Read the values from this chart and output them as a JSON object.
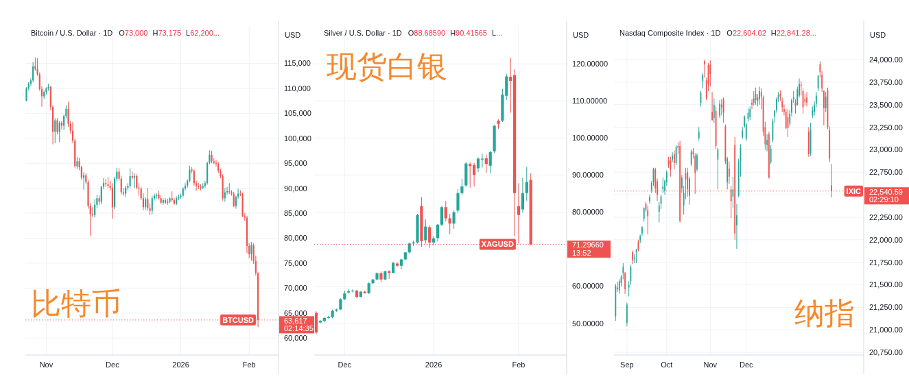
{
  "chart_data": [
    {
      "type": "candlestick",
      "title": "比特币",
      "subtitle": "Bitcoin / U.S. Dollar · 1D",
      "ylabel": "USD",
      "annotations": [
        "O73,000",
        "H73,175",
        "L62,200...",
        "02:14:35"
      ],
      "categories": [
        null,
        null,
        null,
        null,
        null,
        null,
        null,
        null,
        null,
        "Nov",
        null,
        null,
        null,
        null,
        null,
        null,
        null,
        null,
        null,
        null,
        null,
        null,
        null,
        null,
        null,
        null,
        null,
        null,
        null,
        null,
        null,
        null,
        null,
        null,
        null,
        null,
        null,
        null,
        null,
        "Dec",
        null,
        null,
        null,
        null,
        null,
        null,
        null,
        null,
        null,
        null,
        null,
        null,
        null,
        null,
        null,
        null,
        null,
        null,
        null,
        null,
        null,
        null,
        null,
        null,
        null,
        null,
        null,
        null,
        null,
        null,
        "2026",
        null,
        null,
        null,
        null,
        null,
        null,
        null,
        null,
        null,
        null,
        null,
        null,
        null,
        null,
        null,
        null,
        null,
        null,
        null,
        null,
        null,
        null,
        null,
        null,
        null,
        null,
        null,
        null,
        null,
        null,
        "Feb",
        null,
        null,
        null,
        null
      ],
      "ohlc": [
        [
          107500,
          110200,
          107400,
          110000
        ],
        [
          110000,
          111200,
          109600,
          110900
        ],
        [
          110900,
          112000,
          110500,
          111600
        ],
        [
          111600,
          115300,
          111200,
          114400
        ],
        [
          114400,
          116200,
          113500,
          113900
        ],
        [
          113900,
          116000,
          112500,
          112800
        ],
        [
          112800,
          113200,
          109500,
          109800
        ],
        [
          109800,
          110400,
          106300,
          108400
        ],
        [
          108400,
          109600,
          107900,
          109300
        ],
        [
          109300,
          110200,
          108800,
          110000
        ],
        [
          110000,
          110900,
          109500,
          110300
        ],
        [
          110300,
          110500,
          105600,
          106300
        ],
        [
          106300,
          106600,
          98800,
          101300
        ],
        [
          101300,
          104000,
          99000,
          103600
        ],
        [
          103600,
          104000,
          100800,
          101300
        ],
        [
          101300,
          103500,
          99200,
          103100
        ],
        [
          103100,
          103500,
          101800,
          102500
        ],
        [
          102500,
          104800,
          101600,
          104500
        ],
        [
          104500,
          106600,
          104000,
          105900
        ],
        [
          105900,
          107300,
          102300,
          102900
        ],
        [
          102900,
          103400,
          100900,
          101500
        ],
        [
          101500,
          103300,
          99000,
          99500
        ],
        [
          99500,
          99900,
          94100,
          94400
        ],
        [
          94400,
          96300,
          93900,
          95400
        ],
        [
          95400,
          96100,
          93600,
          94200
        ],
        [
          94200,
          94500,
          91700,
          92100
        ],
        [
          92100,
          93200,
          89700,
          92600
        ],
        [
          92600,
          93000,
          90800,
          91200
        ],
        [
          91200,
          91600,
          85900,
          86400
        ],
        [
          86400,
          87000,
          80500,
          84800
        ],
        [
          84800,
          86200,
          84200,
          84600
        ],
        [
          84600,
          87800,
          84100,
          86700
        ],
        [
          86700,
          88700,
          86000,
          88000
        ],
        [
          88000,
          88500,
          86700,
          87300
        ],
        [
          87300,
          90500,
          86800,
          90300
        ],
        [
          90300,
          92000,
          89800,
          91000
        ],
        [
          91000,
          91800,
          90300,
          90800
        ],
        [
          90800,
          92200,
          90000,
          90500
        ],
        [
          90500,
          91500,
          89500,
          90100
        ],
        [
          90100,
          91000,
          83900,
          86200
        ],
        [
          86200,
          92300,
          85800,
          91900
        ],
        [
          91900,
          94100,
          91400,
          93300
        ],
        [
          93300,
          94000,
          91500,
          91900
        ],
        [
          91900,
          92500,
          88700,
          89200
        ],
        [
          89200,
          90000,
          88500,
          88900
        ],
        [
          88900,
          90500,
          88300,
          90100
        ],
        [
          90100,
          91000,
          89600,
          90500
        ],
        [
          90500,
          94000,
          90000,
          92400
        ],
        [
          92400,
          93300,
          91700,
          92100
        ],
        [
          92100,
          93000,
          90000,
          92400
        ],
        [
          92400,
          92800,
          89800,
          90100
        ],
        [
          90100,
          91000,
          88500,
          89900
        ],
        [
          89900,
          90300,
          87600,
          88000
        ],
        [
          88000,
          89000,
          85600,
          86200
        ],
        [
          86200,
          88200,
          85700,
          87800
        ],
        [
          87800,
          90000,
          85500,
          86000
        ],
        [
          86000,
          87000,
          84600,
          85500
        ],
        [
          85500,
          88500,
          84800,
          88000
        ],
        [
          88000,
          88900,
          87500,
          88500
        ],
        [
          88500,
          89000,
          87900,
          88700
        ],
        [
          88700,
          89500,
          87700,
          88000
        ],
        [
          88000,
          88600,
          86900,
          87100
        ],
        [
          87100,
          88000,
          86700,
          87600
        ],
        [
          87600,
          88000,
          86800,
          87100
        ],
        [
          87100,
          87900,
          86700,
          87300
        ],
        [
          87300,
          88200,
          87000,
          88000
        ],
        [
          88000,
          89400,
          87200,
          87600
        ],
        [
          87600,
          88000,
          86700,
          86900
        ],
        [
          86900,
          88400,
          86600,
          88000
        ],
        [
          88000,
          88700,
          87600,
          88300
        ],
        [
          88300,
          88900,
          87900,
          88500
        ],
        [
          88500,
          90200,
          88200,
          89900
        ],
        [
          89900,
          91000,
          89500,
          90500
        ],
        [
          90500,
          91800,
          90100,
          91500
        ],
        [
          91500,
          94500,
          91200,
          93700
        ],
        [
          93700,
          94200,
          93000,
          93500
        ],
        [
          93500,
          93800,
          90500,
          91000
        ],
        [
          91000,
          91500,
          89500,
          90500
        ],
        [
          90500,
          91000,
          89800,
          90300
        ],
        [
          90300,
          90800,
          89600,
          90100
        ],
        [
          90100,
          91000,
          89800,
          90500
        ],
        [
          90500,
          91500,
          90000,
          91000
        ],
        [
          91000,
          95300,
          90700,
          95100
        ],
        [
          95100,
          97600,
          94800,
          96700
        ],
        [
          96700,
          97500,
          95000,
          95400
        ],
        [
          95400,
          96000,
          94800,
          95100
        ],
        [
          95100,
          95600,
          94300,
          94900
        ],
        [
          94900,
          95300,
          93000,
          93500
        ],
        [
          93500,
          93900,
          92000,
          92400
        ],
        [
          92400,
          92800,
          87500,
          88000
        ],
        [
          88000,
          90000,
          87300,
          89200
        ],
        [
          89200,
          90300,
          88700,
          89400
        ],
        [
          89400,
          91000,
          88800,
          89200
        ],
        [
          89200,
          89600,
          88500,
          88900
        ],
        [
          88900,
          89300,
          86200,
          86400
        ],
        [
          86400,
          88500,
          85900,
          88300
        ],
        [
          88300,
          89900,
          87800,
          88900
        ],
        [
          88900,
          89600,
          88400,
          88800
        ],
        [
          88800,
          89100,
          84200,
          84400
        ],
        [
          84400,
          85000,
          83500,
          84100
        ],
        [
          84100,
          84500,
          77000,
          78400
        ],
        [
          78400,
          79000,
          76000,
          76800
        ],
        [
          76800,
          79200,
          75500,
          78600
        ],
        [
          78600,
          79000,
          74800,
          75400
        ],
        [
          75400,
          76500,
          72500,
          73000
        ],
        [
          73000,
          73175,
          62200,
          63617
        ]
      ],
      "colors": [
        "#26a69a",
        "#26a69a",
        "#26a69a",
        "#26a69a",
        "#ef5350",
        "#ef5350",
        "#ef5350",
        "#ef5350",
        "#26a69a",
        "#26a69a",
        "#26a69a",
        "#ef5350",
        "#ef5350",
        "#26a69a",
        "#ef5350",
        "#26a69a",
        "#ef5350",
        "#26a69a",
        "#26a69a",
        "#ef5350",
        "#ef5350",
        "#ef5350",
        "#ef5350",
        "#26a69a",
        "#ef5350",
        "#ef5350",
        "#26a69a",
        "#ef5350",
        "#ef5350",
        "#ef5350",
        "#ef5350",
        "#26a69a",
        "#26a69a",
        "#ef5350",
        "#26a69a",
        "#26a69a",
        "#ef5350",
        "#ef5350",
        "#ef5350",
        "#ef5350",
        "#26a69a",
        "#26a69a",
        "#ef5350",
        "#ef5350",
        "#ef5350",
        "#26a69a",
        "#26a69a",
        "#26a69a",
        "#ef5350",
        "#26a69a",
        "#ef5350",
        "#ef5350",
        "#ef5350",
        "#ef5350",
        "#26a69a",
        "#ef5350",
        "#ef5350",
        "#26a69a",
        "#26a69a",
        "#26a69a",
        "#ef5350",
        "#ef5350",
        "#26a69a",
        "#ef5350",
        "#26a69a",
        "#26a69a",
        "#ef5350",
        "#ef5350",
        "#26a69a",
        "#26a69a",
        "#26a69a",
        "#26a69a",
        "#26a69a",
        "#26a69a",
        "#26a69a",
        "#ef5350",
        "#ef5350",
        "#ef5350",
        "#ef5350",
        "#ef5350",
        "#26a69a",
        "#26a69a",
        "#26a69a",
        "#26a69a",
        "#ef5350",
        "#ef5350",
        "#ef5350",
        "#ef5350",
        "#ef5350",
        "#ef5350",
        "#26a69a",
        "#26a69a",
        "#ef5350",
        "#ef5350",
        "#ef5350",
        "#26a69a",
        "#26a69a",
        "#ef5350",
        "#ef5350",
        "#ef5350",
        "#ef5350",
        "#ef5350",
        "#26a69a",
        "#ef5350",
        "#ef5350",
        "#ef5350"
      ],
      "ylim": [
        56600,
        122600
      ],
      "yticks": [
        {
          "value": 60000,
          "label": "60,000"
        },
        {
          "value": 63617,
          "label": "63,617"
        },
        {
          "value": 65000,
          "label": "65,000"
        },
        {
          "value": 70000,
          "label": "70,000"
        },
        {
          "value": 75000,
          "label": "75,000"
        },
        {
          "value": 80000,
          "label": "80,000"
        },
        {
          "value": 85000,
          "label": "85,000"
        },
        {
          "value": 90000,
          "label": "90,000"
        },
        {
          "value": 95000,
          "label": "95,000"
        },
        {
          "value": 100000,
          "label": "100,000"
        },
        {
          "value": 105000,
          "label": "105,000"
        },
        {
          "value": 110000,
          "label": "110,000"
        },
        {
          "value": 115000,
          "label": "115,000"
        }
      ],
      "grid": true,
      "ref_lines": [
        {
          "axis": "y",
          "value": 63617,
          "label": "BTCUSD",
          "color": "#ef5350",
          "line_style": "dotted"
        }
      ]
    },
    {
      "type": "candlestick",
      "title": "现货白银",
      "subtitle": "Silver / U.S. Dollar · 1D",
      "ylabel": "USD",
      "annotations": [
        "O88.68590",
        "H90.41565",
        "L...",
        "13:52"
      ],
      "categories": [
        null,
        null,
        null,
        null,
        null,
        null,
        null,
        "Dec",
        null,
        null,
        null,
        null,
        null,
        null,
        null,
        null,
        null,
        null,
        null,
        null,
        null,
        null,
        null,
        null,
        null,
        null,
        null,
        null,
        null,
        "2026",
        null,
        null,
        null,
        null,
        null,
        null,
        null,
        null,
        null,
        null,
        null,
        null,
        null,
        null,
        null,
        null,
        null,
        null,
        null,
        null,
        "Feb",
        null,
        null,
        null
      ],
      "ohlc": [
        [
          52.8,
          53.2,
          47.0,
          47.5
        ],
        [
          50.2,
          50.9,
          50.0,
          50.6
        ],
        [
          50.6,
          51.6,
          50.3,
          51.4
        ],
        [
          51.4,
          52.0,
          51.2,
          51.6
        ],
        [
          51.6,
          53.6,
          51.3,
          53.4
        ],
        [
          53.4,
          53.9,
          53.1,
          53.7
        ],
        [
          53.7,
          56.7,
          53.5,
          56.5
        ],
        [
          56.5,
          58.8,
          56.2,
          58.0
        ],
        [
          58.3,
          59.1,
          58.0,
          58.6
        ],
        [
          58.6,
          59.1,
          58.3,
          58.8
        ],
        [
          58.8,
          59.0,
          56.8,
          57.1
        ],
        [
          57.1,
          58.7,
          57.0,
          58.5
        ],
        [
          58.5,
          58.8,
          58.0,
          58.1
        ],
        [
          58.1,
          61.0,
          57.9,
          60.8
        ],
        [
          60.8,
          62.0,
          60.6,
          61.8
        ],
        [
          61.8,
          63.7,
          61.5,
          63.5
        ],
        [
          63.5,
          64.0,
          61.0,
          61.8
        ],
        [
          61.8,
          64.2,
          61.6,
          64.0
        ],
        [
          64.0,
          64.3,
          62.0,
          63.6
        ],
        [
          63.6,
          66.6,
          63.4,
          66.3
        ],
        [
          66.1,
          66.5,
          65.2,
          65.5
        ],
        [
          65.5,
          67.4,
          64.5,
          67.2
        ],
        [
          67.2,
          69.2,
          67.0,
          69.1
        ],
        [
          69.1,
          71.8,
          68.9,
          71.5
        ],
        [
          71.5,
          72.3,
          70.8,
          71.8
        ],
        [
          71.8,
          79.5,
          71.5,
          79.2
        ],
        [
          81.6,
          84.1,
          70.6,
          72.1
        ],
        [
          72.4,
          78.0,
          71.5,
          76.1
        ],
        [
          75.9,
          76.5,
          70.3,
          71.8
        ],
        [
          71.8,
          73.5,
          71.0,
          72.9
        ],
        [
          73.0,
          76.8,
          72.0,
          76.6
        ],
        [
          76.6,
          81.6,
          76.2,
          81.3
        ],
        [
          81.3,
          83.0,
          77.5,
          78.3
        ],
        [
          78.3,
          79.5,
          74.0,
          76.9
        ],
        [
          76.9,
          80.5,
          75.5,
          80.0
        ],
        [
          80.4,
          86.2,
          79.7,
          85.1
        ],
        [
          85.1,
          89.0,
          84.5,
          86.9
        ],
        [
          87.2,
          93.5,
          86.8,
          93.1
        ],
        [
          93.0,
          93.5,
          86.6,
          92.4
        ],
        [
          92.7,
          93.3,
          86.9,
          90.0
        ],
        [
          91.8,
          94.8,
          90.8,
          94.4
        ],
        [
          94.2,
          95.8,
          92.0,
          94.4
        ],
        [
          94.5,
          95.5,
          90.6,
          93.0
        ],
        [
          92.5,
          96.5,
          90.5,
          96.2
        ],
        [
          96.4,
          103.5,
          96.0,
          103.3
        ],
        [
          104.7,
          105.0,
          102.5,
          103.8
        ],
        [
          104.7,
          113.3,
          104.3,
          111.7
        ],
        [
          111.4,
          117.3,
          110.3,
          116.6
        ],
        [
          116.5,
          121.6,
          106.8,
          115.4
        ],
        [
          117.0,
          118.5,
          73.5,
          85.1
        ],
        [
          81.6,
          87.8,
          71.5,
          79.2
        ],
        [
          80.7,
          89.2,
          79.8,
          85.1
        ],
        [
          85.1,
          92.1,
          83.1,
          88.1
        ],
        [
          88.6859,
          90.41565,
          71.1,
          71.2966
        ]
      ],
      "colors": [
        "#ef5350",
        "#26a69a",
        "#26a69a",
        "#26a69a",
        "#26a69a",
        "#26a69a",
        "#26a69a",
        "#26a69a",
        "#26a69a",
        "#26a69a",
        "#ef5350",
        "#26a69a",
        "#ef5350",
        "#26a69a",
        "#26a69a",
        "#26a69a",
        "#ef5350",
        "#26a69a",
        "#ef5350",
        "#26a69a",
        "#ef5350",
        "#26a69a",
        "#26a69a",
        "#26a69a",
        "#26a69a",
        "#26a69a",
        "#ef5350",
        "#26a69a",
        "#ef5350",
        "#26a69a",
        "#26a69a",
        "#26a69a",
        "#ef5350",
        "#ef5350",
        "#26a69a",
        "#26a69a",
        "#26a69a",
        "#26a69a",
        "#ef5350",
        "#ef5350",
        "#26a69a",
        "#26a69a",
        "#ef5350",
        "#26a69a",
        "#26a69a",
        "#ef5350",
        "#26a69a",
        "#26a69a",
        "#ef5350",
        "#ef5350",
        "#ef5350",
        "#26a69a",
        "#26a69a",
        "#ef5350"
      ],
      "ylim": [
        41.4,
        130.4
      ],
      "yticks": [
        {
          "value": 50,
          "label": "50.00000"
        },
        {
          "value": 60,
          "label": "60.00000"
        },
        {
          "value": 70,
          "label": null
        },
        {
          "value": 71.2966,
          "label": "71.29660"
        },
        {
          "value": 80,
          "label": "80.00000"
        },
        {
          "value": 90,
          "label": "90.00000"
        },
        {
          "value": 100,
          "label": "100.00000"
        },
        {
          "value": 110,
          "label": "110.00000"
        },
        {
          "value": 120,
          "label": "120.00000"
        }
      ],
      "grid": true,
      "ref_lines": [
        {
          "axis": "y",
          "value": 71.2966,
          "label": "XAGUSD",
          "color": "#ef5350",
          "line_style": "dotted"
        }
      ]
    },
    {
      "type": "candlestick",
      "title": "纳指",
      "subtitle": "Nasdaq Composite Index · 1D",
      "ylabel": "USD",
      "annotations": [
        "O22,604.02",
        "H22,841.28...",
        "02:29:10"
      ],
      "categories": [
        null,
        null,
        null,
        null,
        null,
        null,
        "Sep",
        null,
        null,
        null,
        null,
        null,
        null,
        null,
        null,
        null,
        null,
        null,
        null,
        null,
        null,
        null,
        null,
        null,
        null,
        null,
        null,
        "Oct",
        null,
        null,
        null,
        null,
        null,
        null,
        null,
        null,
        null,
        null,
        null,
        null,
        null,
        null,
        null,
        null,
        null,
        null,
        null,
        null,
        null,
        null,
        "Nov",
        null,
        null,
        null,
        null,
        null,
        null,
        null,
        null,
        null,
        null,
        null,
        null,
        null,
        null,
        null,
        null,
        null,
        null,
        "Dec",
        null,
        null,
        null,
        null,
        null,
        null,
        null,
        null,
        null,
        null,
        null,
        null,
        null,
        null,
        null,
        null,
        null,
        null,
        null,
        null,
        null,
        null,
        null,
        null,
        null,
        null,
        null,
        null,
        null,
        null,
        null,
        null,
        null,
        null,
        null,
        null,
        null,
        null,
        null,
        null,
        null,
        null,
        null,
        null,
        null
      ],
      "ohlc": [
        [
          21150,
          21510,
          21100,
          21490
        ],
        [
          21470,
          21530,
          21420,
          21450
        ],
        [
          21440,
          21560,
          21400,
          21540
        ],
        [
          21520,
          21610,
          21480,
          21590
        ],
        [
          21630,
          21740,
          21560,
          21700
        ],
        [
          21630,
          21640,
          21400,
          21450
        ],
        [
          21080,
          21300,
          21040,
          21280
        ],
        [
          21470,
          21540,
          21370,
          21500
        ],
        [
          21540,
          21720,
          21500,
          21700
        ],
        [
          21860,
          21880,
          21730,
          21770
        ],
        [
          21790,
          21840,
          21740,
          21800
        ],
        [
          21860,
          21900,
          21740,
          21890
        ],
        [
          21980,
          22000,
          21870,
          21890
        ],
        [
          21990,
          22060,
          21960,
          22040
        ],
        [
          22070,
          22150,
          22040,
          22140
        ],
        [
          22230,
          22360,
          22200,
          22350
        ],
        [
          22400,
          22420,
          22310,
          22330
        ],
        [
          22330,
          22380,
          22060,
          22260
        ],
        [
          22430,
          22500,
          22400,
          22470
        ],
        [
          22550,
          22650,
          22520,
          22630
        ],
        [
          22640,
          22800,
          22600,
          22790
        ],
        [
          22780,
          22800,
          22520,
          22570
        ],
        [
          22650,
          22680,
          22430,
          22500
        ],
        [
          22310,
          22420,
          22190,
          22380
        ],
        [
          22400,
          22500,
          22340,
          22480
        ],
        [
          22560,
          22690,
          22520,
          22590
        ],
        [
          22540,
          22670,
          22500,
          22650
        ],
        [
          22640,
          22770,
          22600,
          22750
        ],
        [
          22880,
          22920,
          22800,
          22840
        ],
        [
          22880,
          22920,
          22700,
          22780
        ],
        [
          22890,
          22970,
          22860,
          22930
        ],
        [
          22950,
          22990,
          22780,
          22850
        ],
        [
          22850,
          23050,
          22830,
          23030
        ],
        [
          23040,
          23080,
          22950,
          23020
        ],
        [
          23040,
          23100,
          22190,
          22210
        ],
        [
          22570,
          22720,
          22520,
          22690
        ],
        [
          22380,
          22600,
          22280,
          22520
        ],
        [
          22740,
          22800,
          22450,
          22670
        ],
        [
          22750,
          22800,
          22480,
          22560
        ],
        [
          22490,
          22700,
          22390,
          22680
        ],
        [
          22840,
          23000,
          22820,
          22980
        ],
        [
          22980,
          23020,
          22900,
          22950
        ],
        [
          22930,
          22960,
          22510,
          22740
        ],
        [
          22780,
          22960,
          22760,
          22940
        ],
        [
          23130,
          23250,
          23100,
          23200
        ],
        [
          23520,
          23650,
          23480,
          23630
        ],
        [
          23760,
          23850,
          23680,
          23830
        ],
        [
          23980,
          24000,
          23800,
          23950
        ],
        [
          23770,
          23800,
          23550,
          23570
        ],
        [
          23940,
          23960,
          23650,
          23730
        ],
        [
          23940,
          23990,
          23700,
          23840
        ],
        [
          23420,
          23640,
          23320,
          23330
        ],
        [
          23350,
          23570,
          23300,
          23500
        ],
        [
          23430,
          23480,
          23010,
          23040
        ],
        [
          22890,
          23020,
          22560,
          23000
        ],
        [
          23380,
          23550,
          23350,
          23510
        ],
        [
          23500,
          23560,
          23380,
          23470
        ],
        [
          23560,
          23580,
          23300,
          23410
        ],
        [
          23260,
          23280,
          22840,
          22870
        ],
        [
          22640,
          22920,
          22560,
          22900
        ],
        [
          22790,
          22870,
          22620,
          22700
        ],
        [
          22560,
          22600,
          22240,
          22430
        ],
        [
          22480,
          22700,
          22350,
          22560
        ],
        [
          23050,
          23140,
          22000,
          22070
        ],
        [
          22160,
          22400,
          21900,
          22270
        ],
        [
          22490,
          22900,
          22470,
          22870
        ],
        [
          22870,
          23060,
          22700,
          23020
        ],
        [
          23140,
          23250,
          23120,
          23210
        ],
        [
          23260,
          23380,
          23240,
          23370
        ],
        [
          23120,
          23300,
          23100,
          23280
        ],
        [
          23340,
          23460,
          23310,
          23410
        ],
        [
          23360,
          23480,
          23330,
          23450
        ],
        [
          23520,
          23560,
          23450,
          23500
        ],
        [
          23520,
          23650,
          23490,
          23570
        ],
        [
          23620,
          23690,
          23500,
          23550
        ],
        [
          23540,
          23620,
          23480,
          23580
        ],
        [
          23560,
          23700,
          23500,
          23650
        ],
        [
          23640,
          23680,
          23450,
          23590
        ],
        [
          23580,
          23600,
          23150,
          23200
        ],
        [
          23250,
          23310,
          23000,
          23060
        ],
        [
          23050,
          23170,
          22980,
          23110
        ],
        [
          23170,
          23200,
          22680,
          22690
        ],
        [
          22860,
          23050,
          22840,
          23010
        ],
        [
          23110,
          23340,
          23080,
          23310
        ],
        [
          23370,
          23440,
          23300,
          23430
        ],
        [
          23440,
          23580,
          23410,
          23560
        ],
        [
          23560,
          23640,
          23530,
          23610
        ],
        [
          23620,
          23660,
          23540,
          23590
        ],
        [
          23540,
          23580,
          23420,
          23470
        ],
        [
          23450,
          23500,
          23380,
          23420
        ],
        [
          23420,
          23450,
          23230,
          23240
        ],
        [
          23360,
          23450,
          23140,
          23240
        ],
        [
          23290,
          23440,
          23260,
          23400
        ],
        [
          23410,
          23570,
          23370,
          23550
        ],
        [
          23560,
          23650,
          23520,
          23580
        ],
        [
          23520,
          23560,
          23400,
          23480
        ],
        [
          23500,
          23700,
          23490,
          23670
        ],
        [
          23600,
          23790,
          23580,
          23730
        ],
        [
          23720,
          23760,
          23600,
          23710
        ],
        [
          23650,
          23680,
          23400,
          23470
        ],
        [
          23560,
          23620,
          23490,
          23530
        ],
        [
          23580,
          23640,
          23480,
          23520
        ],
        [
          23200,
          23250,
          22920,
          22950
        ],
        [
          22960,
          23300,
          22930,
          23220
        ],
        [
          23380,
          23480,
          23350,
          23440
        ],
        [
          23420,
          23540,
          23380,
          23500
        ],
        [
          23510,
          23640,
          23470,
          23600
        ],
        [
          23680,
          23830,
          23650,
          23820
        ],
        [
          23950,
          23980,
          23800,
          23860
        ],
        [
          23830,
          23870,
          23640,
          23680
        ],
        [
          23650,
          23660,
          23270,
          23460
        ],
        [
          23460,
          23640,
          23420,
          23590
        ],
        [
          23660,
          23690,
          23230,
          23250
        ],
        [
          23220,
          23260,
          22860,
          22900
        ],
        [
          22604.02,
          22841.28,
          22470,
          22540.59
        ]
      ],
      "colors": [
        "#26a69a",
        "#ef5350",
        "#26a69a",
        "#26a69a",
        "#26a69a",
        "#ef5350",
        "#26a69a",
        "#26a69a",
        "#26a69a",
        "#ef5350",
        "#26a69a",
        "#26a69a",
        "#ef5350",
        "#26a69a",
        "#26a69a",
        "#26a69a",
        "#ef5350",
        "#ef5350",
        "#26a69a",
        "#26a69a",
        "#26a69a",
        "#ef5350",
        "#ef5350",
        "#26a69a",
        "#26a69a",
        "#26a69a",
        "#26a69a",
        "#26a69a",
        "#ef5350",
        "#ef5350",
        "#26a69a",
        "#ef5350",
        "#26a69a",
        "#ef5350",
        "#ef5350",
        "#26a69a",
        "#26a69a",
        "#ef5350",
        "#ef5350",
        "#26a69a",
        "#26a69a",
        "#ef5350",
        "#ef5350",
        "#26a69a",
        "#26a69a",
        "#26a69a",
        "#26a69a",
        "#ef5350",
        "#ef5350",
        "#ef5350",
        "#ef5350",
        "#ef5350",
        "#26a69a",
        "#ef5350",
        "#26a69a",
        "#26a69a",
        "#ef5350",
        "#ef5350",
        "#ef5350",
        "#26a69a",
        "#ef5350",
        "#ef5350",
        "#26a69a",
        "#ef5350",
        "#26a69a",
        "#26a69a",
        "#26a69a",
        "#26a69a",
        "#26a69a",
        "#26a69a",
        "#26a69a",
        "#26a69a",
        "#ef5350",
        "#26a69a",
        "#ef5350",
        "#26a69a",
        "#26a69a",
        "#ef5350",
        "#ef5350",
        "#ef5350",
        "#26a69a",
        "#ef5350",
        "#26a69a",
        "#26a69a",
        "#26a69a",
        "#26a69a",
        "#26a69a",
        "#ef5350",
        "#ef5350",
        "#ef5350",
        "#ef5350",
        "#ef5350",
        "#26a69a",
        "#26a69a",
        "#26a69a",
        "#ef5350",
        "#26a69a",
        "#26a69a",
        "#ef5350",
        "#ef5350",
        "#ef5350",
        "#ef5350",
        "#ef5350",
        "#26a69a",
        "#26a69a",
        "#26a69a",
        "#26a69a",
        "#26a69a",
        "#ef5350",
        "#ef5350",
        "#ef5350",
        "#26a69a",
        "#ef5350",
        "#ef5350",
        "#ef5350"
      ],
      "ylim": [
        20720,
        24380
      ],
      "yticks": [
        {
          "value": 20750,
          "label": "20,750.00"
        },
        {
          "value": 21000,
          "label": "21,000.00"
        },
        {
          "value": 21250,
          "label": "21,250.00"
        },
        {
          "value": 21500,
          "label": "21,500.00"
        },
        {
          "value": 21750,
          "label": "21,750.00"
        },
        {
          "value": 22000,
          "label": "22,000.00"
        },
        {
          "value": 22250,
          "label": "22,250.00"
        },
        {
          "value": 22500,
          "label": null
        },
        {
          "value": 22540.59,
          "label": "22,540.59"
        },
        {
          "value": 22750,
          "label": "22,750.00"
        },
        {
          "value": 23000,
          "label": "23,000.00"
        },
        {
          "value": 23250,
          "label": "23,250.00"
        },
        {
          "value": 23500,
          "label": "23,500.00"
        },
        {
          "value": 23750,
          "label": "23,750.00"
        },
        {
          "value": 24000,
          "label": "24,000.00"
        }
      ],
      "grid": true,
      "ref_lines": [
        {
          "axis": "y",
          "value": 22540.59,
          "label": "IXIC",
          "color": "#ef5350",
          "line_style": "dotted"
        }
      ]
    }
  ]
}
